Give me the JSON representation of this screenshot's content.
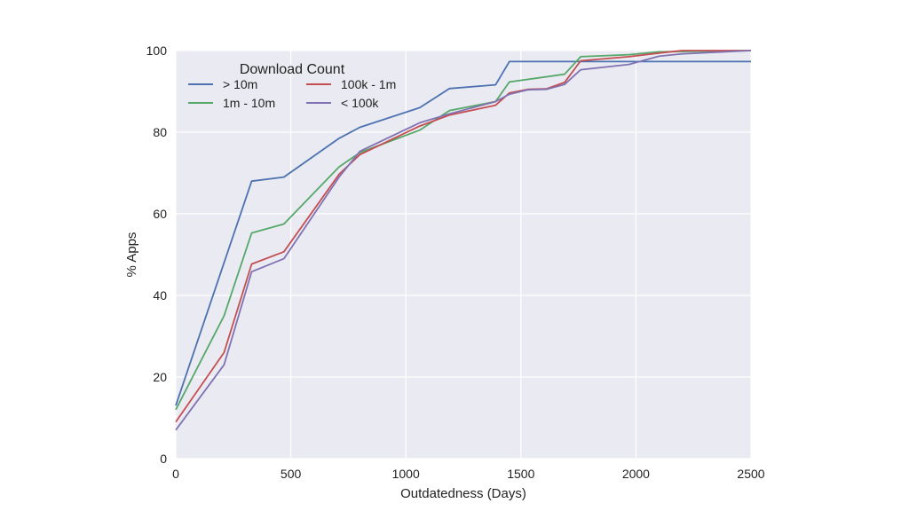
{
  "chart_data": {
    "type": "line",
    "title": "",
    "xlabel": "Outdatedness (Days)",
    "ylabel": "% Apps",
    "xlim": [
      0,
      2500
    ],
    "ylim": [
      0,
      100
    ],
    "xticks": [
      0,
      500,
      1000,
      1500,
      2000,
      2500
    ],
    "yticks": [
      0,
      20,
      40,
      60,
      80,
      100
    ],
    "grid": true,
    "legend": {
      "title": "Download Count",
      "placement": "top-left",
      "columns": 2
    },
    "series": [
      {
        "name": "> 10m",
        "color": "#4c72b0",
        "points": [
          [
            0,
            13
          ],
          [
            210,
            48
          ],
          [
            330,
            68
          ],
          [
            470,
            69
          ],
          [
            710,
            78.5
          ],
          [
            800,
            81.2
          ],
          [
            1060,
            86
          ],
          [
            1190,
            90.7
          ],
          [
            1390,
            91.6
          ],
          [
            1450,
            97.3
          ],
          [
            2500,
            97.3
          ]
        ]
      },
      {
        "name": "1m - 10m",
        "color": "#55a868",
        "points": [
          [
            0,
            12
          ],
          [
            210,
            35
          ],
          [
            330,
            55.3
          ],
          [
            470,
            57.5
          ],
          [
            710,
            71.5
          ],
          [
            800,
            75
          ],
          [
            1060,
            80.5
          ],
          [
            1190,
            85.3
          ],
          [
            1390,
            87.5
          ],
          [
            1450,
            92.3
          ],
          [
            1690,
            94.2
          ],
          [
            1760,
            98.5
          ],
          [
            1970,
            99
          ],
          [
            2100,
            99.7
          ],
          [
            2500,
            100
          ]
        ]
      },
      {
        "name": "100k - 1m",
        "color": "#c44e52",
        "points": [
          [
            0,
            9
          ],
          [
            210,
            26
          ],
          [
            330,
            47.7
          ],
          [
            470,
            50.7
          ],
          [
            710,
            69.7
          ],
          [
            800,
            74.5
          ],
          [
            1060,
            81.5
          ],
          [
            1190,
            84.2
          ],
          [
            1390,
            86.6
          ],
          [
            1450,
            89.6
          ],
          [
            1530,
            90.5
          ],
          [
            1610,
            90.6
          ],
          [
            1690,
            92.2
          ],
          [
            1760,
            97.5
          ],
          [
            1970,
            98.5
          ],
          [
            2100,
            99.4
          ],
          [
            2200,
            100
          ],
          [
            2500,
            100
          ]
        ]
      },
      {
        "name": "< 100k",
        "color": "#8172b2",
        "points": [
          [
            0,
            7
          ],
          [
            210,
            23
          ],
          [
            330,
            45.8
          ],
          [
            470,
            49
          ],
          [
            710,
            69
          ],
          [
            800,
            75.3
          ],
          [
            1060,
            82.3
          ],
          [
            1190,
            84.5
          ],
          [
            1390,
            87.5
          ],
          [
            1450,
            89.3
          ],
          [
            1530,
            90.4
          ],
          [
            1610,
            90.5
          ],
          [
            1690,
            91.7
          ],
          [
            1760,
            95.3
          ],
          [
            1970,
            96.6
          ],
          [
            2100,
            98.6
          ],
          [
            2200,
            99.2
          ],
          [
            2500,
            100
          ]
        ]
      }
    ]
  }
}
